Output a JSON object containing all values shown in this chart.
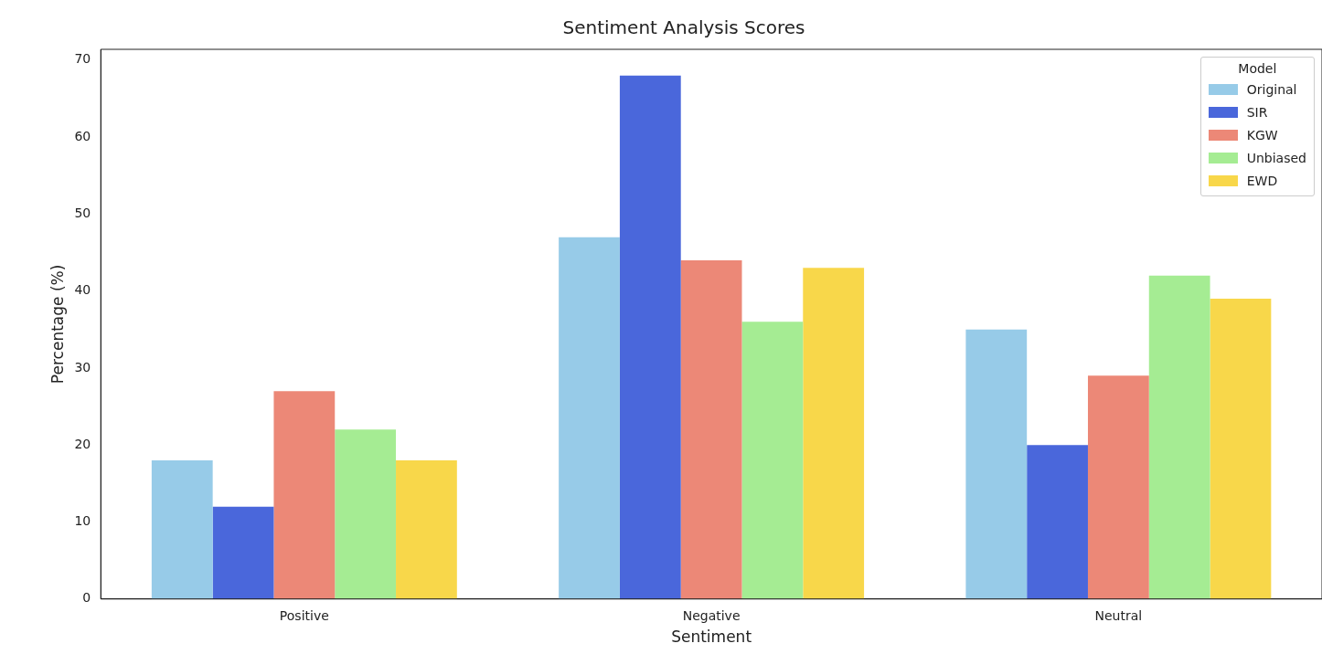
{
  "chart_data": {
    "type": "bar",
    "title": "Sentiment Analysis Scores",
    "xlabel": "Sentiment",
    "ylabel": "Percentage (%)",
    "legend_title": "Model",
    "categories": [
      "Positive",
      "Negative",
      "Neutral"
    ],
    "series": [
      {
        "name": "Original",
        "color": "#97cbe8",
        "values": [
          18,
          47,
          35
        ]
      },
      {
        "name": "SIR",
        "color": "#4a67db",
        "values": [
          12,
          68,
          20
        ]
      },
      {
        "name": "KGW",
        "color": "#ec8877",
        "values": [
          27,
          44,
          29
        ]
      },
      {
        "name": "Unbiased",
        "color": "#a5ec93",
        "values": [
          22,
          36,
          42
        ]
      },
      {
        "name": "EWD",
        "color": "#f8d74a",
        "values": [
          18,
          43,
          39
        ]
      }
    ],
    "ylim": [
      0,
      71.4
    ],
    "yticks": [
      0,
      10,
      20,
      30,
      40,
      50,
      60,
      70
    ],
    "grid": false,
    "legend": "top right"
  }
}
